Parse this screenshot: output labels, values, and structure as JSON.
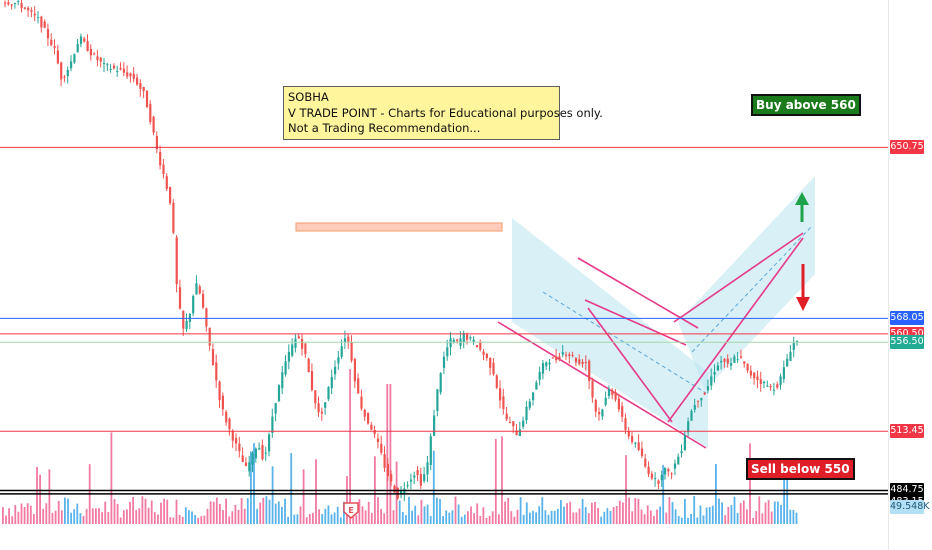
{
  "chart_data": {
    "type": "candlestick",
    "symbol": "SOBHA",
    "annotation_lines": [
      "SOBHA",
      "V TRADE POINT - Charts for Educational purposes only.",
      "Not a Trading Recommendation..."
    ],
    "buy_label": "Buy above 560",
    "sell_label": "Sell below 550",
    "ylim": [
      456,
      722
    ],
    "price_levels": [
      {
        "value": 650.75,
        "label": "650.75",
        "color": "#f23645"
      },
      {
        "value": 568.05,
        "label": "568.05",
        "color": "#2962ff"
      },
      {
        "value": 560.5,
        "label": "560.50",
        "color": "#f23645"
      },
      {
        "value": 556.5,
        "label": "556.50",
        "color": "#22ab94"
      },
      {
        "value": 513.45,
        "label": "513.45",
        "color": "#f23645"
      },
      {
        "value": 484.75,
        "label": "484.75",
        "color": "#000000"
      },
      {
        "value": 483.15,
        "label": "483.15",
        "color": "#000000"
      }
    ],
    "volume_label": "49.548K",
    "colors": {
      "up": "#26a69a",
      "down": "#ef5350",
      "vol_up": "#3ba6e6",
      "vol_down": "#f06292",
      "channel_fill": "#bfe6f2",
      "pattern_line": "#e53a8a"
    },
    "price_path": [
      [
        0,
        722
      ],
      [
        20,
        720
      ],
      [
        40,
        712
      ],
      [
        55,
        698
      ],
      [
        62,
        684
      ],
      [
        70,
        690
      ],
      [
        80,
        704
      ],
      [
        92,
        696
      ],
      [
        105,
        690
      ],
      [
        120,
        688
      ],
      [
        135,
        684
      ],
      [
        145,
        676
      ],
      [
        152,
        662
      ],
      [
        158,
        648
      ],
      [
        165,
        636
      ],
      [
        172,
        622
      ],
      [
        178,
        578
      ],
      [
        184,
        562
      ],
      [
        190,
        570
      ],
      [
        196,
        585
      ],
      [
        202,
        578
      ],
      [
        206,
        565
      ],
      [
        210,
        555
      ],
      [
        216,
        540
      ],
      [
        222,
        525
      ],
      [
        230,
        514
      ],
      [
        238,
        505
      ],
      [
        246,
        495
      ],
      [
        252,
        500
      ],
      [
        258,
        508
      ],
      [
        264,
        500
      ],
      [
        268,
        506
      ],
      [
        274,
        524
      ],
      [
        282,
        540
      ],
      [
        290,
        552
      ],
      [
        298,
        560
      ],
      [
        305,
        552
      ],
      [
        312,
        535
      ],
      [
        320,
        520
      ],
      [
        326,
        528
      ],
      [
        332,
        540
      ],
      [
        340,
        552
      ],
      [
        346,
        560
      ],
      [
        350,
        555
      ],
      [
        355,
        540
      ],
      [
        360,
        528
      ],
      [
        366,
        520
      ],
      [
        372,
        515
      ],
      [
        380,
        505
      ],
      [
        386,
        495
      ],
      [
        392,
        488
      ],
      [
        398,
        482
      ],
      [
        404,
        486
      ],
      [
        410,
        490
      ],
      [
        416,
        494
      ],
      [
        422,
        488
      ],
      [
        428,
        498
      ],
      [
        434,
        520
      ],
      [
        440,
        540
      ],
      [
        446,
        552
      ],
      [
        452,
        558
      ],
      [
        458,
        556
      ],
      [
        464,
        560
      ],
      [
        470,
        558
      ],
      [
        476,
        556
      ],
      [
        482,
        552
      ],
      [
        488,
        548
      ],
      [
        494,
        542
      ],
      [
        500,
        530
      ],
      [
        506,
        520
      ],
      [
        512,
        516
      ],
      [
        518,
        512
      ],
      [
        524,
        520
      ],
      [
        530,
        528
      ],
      [
        536,
        536
      ],
      [
        542,
        544
      ],
      [
        548,
        548
      ],
      [
        556,
        548
      ],
      [
        564,
        552
      ],
      [
        572,
        550
      ],
      [
        580,
        546
      ],
      [
        586,
        548
      ],
      [
        592,
        532
      ],
      [
        598,
        520
      ],
      [
        604,
        526
      ],
      [
        610,
        534
      ],
      [
        616,
        530
      ],
      [
        622,
        520
      ],
      [
        628,
        512
      ],
      [
        634,
        508
      ],
      [
        640,
        504
      ],
      [
        646,
        496
      ],
      [
        652,
        492
      ],
      [
        658,
        488
      ],
      [
        664,
        496
      ],
      [
        670,
        492
      ],
      [
        676,
        498
      ],
      [
        682,
        505
      ],
      [
        688,
        518
      ],
      [
        694,
        526
      ],
      [
        700,
        530
      ],
      [
        706,
        532
      ],
      [
        712,
        540
      ],
      [
        718,
        546
      ],
      [
        724,
        548
      ],
      [
        730,
        544
      ],
      [
        736,
        550
      ],
      [
        742,
        548
      ],
      [
        748,
        542
      ],
      [
        754,
        540
      ],
      [
        760,
        538
      ],
      [
        766,
        536
      ],
      [
        772,
        534
      ],
      [
        778,
        536
      ],
      [
        782,
        540
      ],
      [
        786,
        546
      ],
      [
        790,
        552
      ],
      [
        794,
        556
      ],
      [
        796,
        557
      ]
    ]
  }
}
